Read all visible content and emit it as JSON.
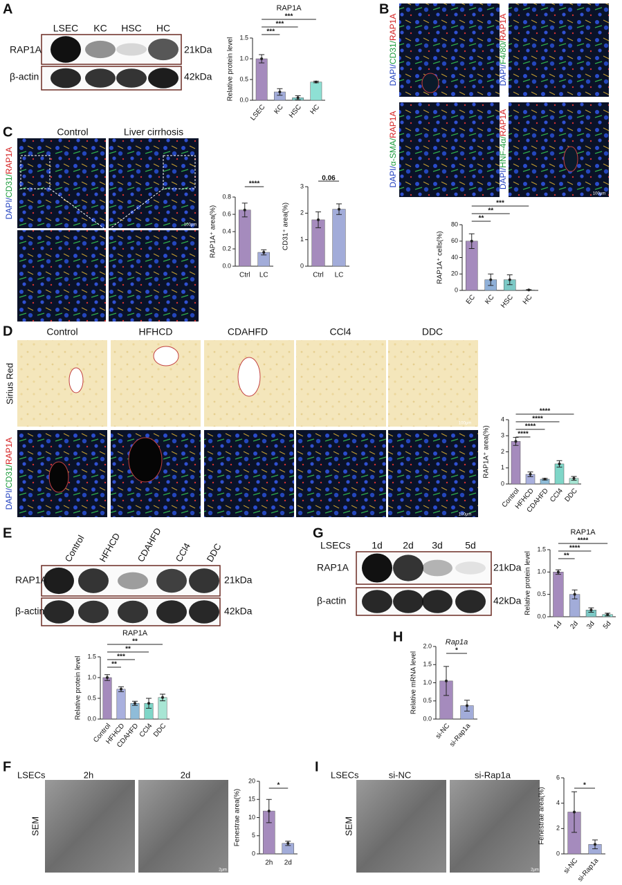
{
  "texts": [
    "A",
    "B",
    "C",
    "D",
    "E",
    "F",
    "G",
    "H",
    "I",
    "LSEC",
    "KC",
    "HSC",
    "HC",
    "RAP1A",
    "β-actin",
    "21kDa",
    "42kDa",
    "Control",
    "Liver cirrhosis",
    "Control",
    "HFHCD",
    "CDAHFD",
    "CCl4",
    "DDC",
    "Sirius Red",
    "Control",
    "HFHCD",
    "CDAHFD",
    "CCl4",
    "DDC",
    "RAP1A",
    "β-actin",
    "21kDa",
    "42kDa",
    "LSECs",
    "1d",
    "2d",
    "3d",
    "5d",
    "RAP1A",
    "β-actin",
    "21kDa",
    "42kDa",
    "LSECs",
    "2h",
    "2d",
    "SEM",
    "LSECs",
    "si-NC",
    "si-Rap1a",
    "SEM",
    "100μm",
    "100μm",
    "100μm",
    "2μm",
    "2μm",
    "100μm"
  ],
  "stains": [
    [
      {
        "text": "DAPI/",
        "color": "#1f3fbf"
      },
      {
        "text": "CD31/",
        "color": "#1a9a3a"
      },
      {
        "text": "RAP1A",
        "color": "#d42020"
      }
    ],
    [
      {
        "text": "DAPI/",
        "color": "#1f3fbf"
      },
      {
        "text": "F4/80/",
        "color": "#1a9a3a"
      },
      {
        "text": "RAP1A",
        "color": "#d42020"
      }
    ],
    [
      {
        "text": "DAPI/",
        "color": "#1f3fbf"
      },
      {
        "text": "α-SMA/",
        "color": "#1a9a3a"
      },
      {
        "text": "RAP1A",
        "color": "#d42020"
      }
    ],
    [
      {
        "text": "DAPI/",
        "color": "#1f3fbf"
      },
      {
        "text": "HNF-4α/",
        "color": "#1a9a3a"
      },
      {
        "text": "RAP1A",
        "color": "#d42020"
      }
    ],
    [
      {
        "text": "DAPI/",
        "color": "#1f3fbf"
      },
      {
        "text": "CD31/",
        "color": "#1a9a3a"
      },
      {
        "text": "RAP1A",
        "color": "#d42020"
      }
    ],
    [
      {
        "text": "DAPI/",
        "color": "#1f3fbf"
      },
      {
        "text": "CD31/",
        "color": "#1a9a3a"
      },
      {
        "text": "RAP1A",
        "color": "#d42020"
      }
    ]
  ],
  "chart_data": [
    {
      "type": "bar",
      "title": "RAP1A",
      "y_label": "Relative protein level",
      "categories": [
        "LSEC",
        "KC",
        "HSC",
        "HC"
      ],
      "values": [
        1.0,
        0.2,
        0.06,
        0.44
      ],
      "errors": [
        0.1,
        0.08,
        0.05,
        0.02
      ],
      "colors": [
        "#a58bbd",
        "#a2acd9",
        "#7cc9c6",
        "#8ee0d4"
      ],
      "ylim": [
        0,
        1.5
      ],
      "yticks": [
        {
          "value": 0,
          "label": "0.0"
        },
        0.5,
        {
          "value": 1,
          "label": "1.0"
        },
        1.5
      ],
      "significance": [
        "***",
        "***",
        "***"
      ]
    },
    {
      "type": "bar",
      "y_label": "RAP1A⁺ cells(%)",
      "categories": [
        "EC",
        "KC",
        "HSC",
        "HC"
      ],
      "values": [
        60,
        13,
        13,
        0.5
      ],
      "errors": [
        9,
        7,
        6,
        0.5
      ],
      "colors": [
        "#a58bbd",
        "#8fb0d8",
        "#7cc9c6",
        "#8ee0d4"
      ],
      "ylim": [
        0,
        80
      ],
      "yticks": [
        0,
        20,
        40,
        60,
        80
      ],
      "significance": [
        "**",
        "**",
        "***"
      ]
    },
    {
      "type": "bar",
      "y_label": "RAP1A⁺ area(%)",
      "categories": [
        "Ctrl",
        "LC"
      ],
      "values": [
        0.65,
        0.16
      ],
      "errors": [
        0.08,
        0.03
      ],
      "colors": [
        "#a58bbd",
        "#a2acd9"
      ],
      "ylim": [
        0,
        0.8
      ],
      "yticks": [
        {
          "value": 0,
          "label": "0.0"
        },
        0.2,
        0.4,
        0.6,
        0.8
      ],
      "significance": [
        "****"
      ]
    },
    {
      "type": "bar",
      "y_label": "CD31⁺ area(%)",
      "categories": [
        "Ctrl",
        "LC"
      ],
      "values": [
        1.75,
        2.15
      ],
      "errors": [
        0.3,
        0.2
      ],
      "colors": [
        "#a58bbd",
        "#a2acd9"
      ],
      "ylim": [
        0,
        3
      ],
      "yticks": [
        0,
        1,
        2,
        3
      ],
      "significance": [
        "0.06"
      ]
    },
    {
      "type": "bar",
      "y_label": "RAP1A⁺ area(%)",
      "categories": [
        "Control",
        "HFHCD",
        "CDAHFD",
        "CCl4",
        "DDC"
      ],
      "values": [
        2.65,
        0.6,
        0.3,
        1.25,
        0.35
      ],
      "errors": [
        0.25,
        0.15,
        0.05,
        0.2,
        0.12
      ],
      "colors": [
        "#a58bbd",
        "#a9b0de",
        "#8fbcd8",
        "#7fd6c8",
        "#a8e6d4"
      ],
      "ylim": [
        0,
        4
      ],
      "yticks": [
        0,
        1,
        2,
        3,
        4
      ],
      "significance": [
        "****",
        "****",
        "****",
        "****"
      ]
    },
    {
      "type": "bar",
      "title": "RAP1A",
      "y_label": "Relative protein level",
      "categories": [
        "Control",
        "HFHCD",
        "CDAHFD",
        "CCl4",
        "DDC"
      ],
      "values": [
        1.0,
        0.72,
        0.38,
        0.38,
        0.52
      ],
      "errors": [
        0.07,
        0.06,
        0.05,
        0.12,
        0.08
      ],
      "colors": [
        "#a58bbd",
        "#a9b0de",
        "#8fbcd8",
        "#7fd6c8",
        "#a8e6d4"
      ],
      "ylim": [
        0,
        1.5
      ],
      "yticks": [
        {
          "value": 0,
          "label": "0.0"
        },
        0.5,
        {
          "value": 1,
          "label": "1.0"
        },
        1.5
      ],
      "significance": [
        "**",
        "***",
        "**",
        "**"
      ]
    },
    {
      "type": "bar",
      "title": "RAP1A",
      "y_label": "Relative protein level",
      "categories": [
        "1d",
        "2d",
        "3d",
        "5d"
      ],
      "values": [
        1.0,
        0.5,
        0.15,
        0.05
      ],
      "errors": [
        0.05,
        0.1,
        0.05,
        0.03
      ],
      "colors": [
        "#a58bbd",
        "#a2acd9",
        "#7cc9c6",
        "#8ee0d4"
      ],
      "ylim": [
        0,
        1.5
      ],
      "yticks": [
        {
          "value": 0,
          "label": "0.0"
        },
        0.5,
        {
          "value": 1,
          "label": "1.0"
        },
        1.5
      ],
      "significance": [
        "**",
        "****",
        "****"
      ]
    },
    {
      "type": "bar",
      "title": "Rap1a",
      "y_label": "Relative mRNA level",
      "categories": [
        "si-NC",
        "si-Rap1a"
      ],
      "values": [
        1.05,
        0.37
      ],
      "errors": [
        0.4,
        0.15
      ],
      "colors": [
        "#a58bbd",
        "#a2acd9"
      ],
      "ylim": [
        0,
        2
      ],
      "yticks": [
        {
          "value": 0,
          "label": "0.0"
        },
        0.5,
        {
          "value": 1,
          "label": "1.0"
        },
        1.5,
        {
          "value": 2,
          "label": "2.0"
        }
      ],
      "significance": [
        "*"
      ]
    },
    {
      "type": "bar",
      "y_label": "Fenestrae area(%)",
      "categories": [
        "2h",
        "2d"
      ],
      "values": [
        11.8,
        2.9
      ],
      "errors": [
        3.2,
        0.6
      ],
      "colors": [
        "#a58bbd",
        "#a2acd9"
      ],
      "ylim": [
        0,
        20
      ],
      "yticks": [
        0,
        5,
        10,
        15,
        20
      ],
      "significance": [
        "*"
      ]
    },
    {
      "type": "bar",
      "y_label": "Fenestrae area(%)",
      "categories": [
        "si-NC",
        "si-Rap1a"
      ],
      "values": [
        3.3,
        0.75
      ],
      "errors": [
        1.6,
        0.35
      ],
      "colors": [
        "#a58bbd",
        "#a2acd9"
      ],
      "ylim": [
        0,
        6
      ],
      "yticks": [
        0,
        2,
        4,
        6
      ],
      "significance": [
        "*"
      ]
    }
  ]
}
